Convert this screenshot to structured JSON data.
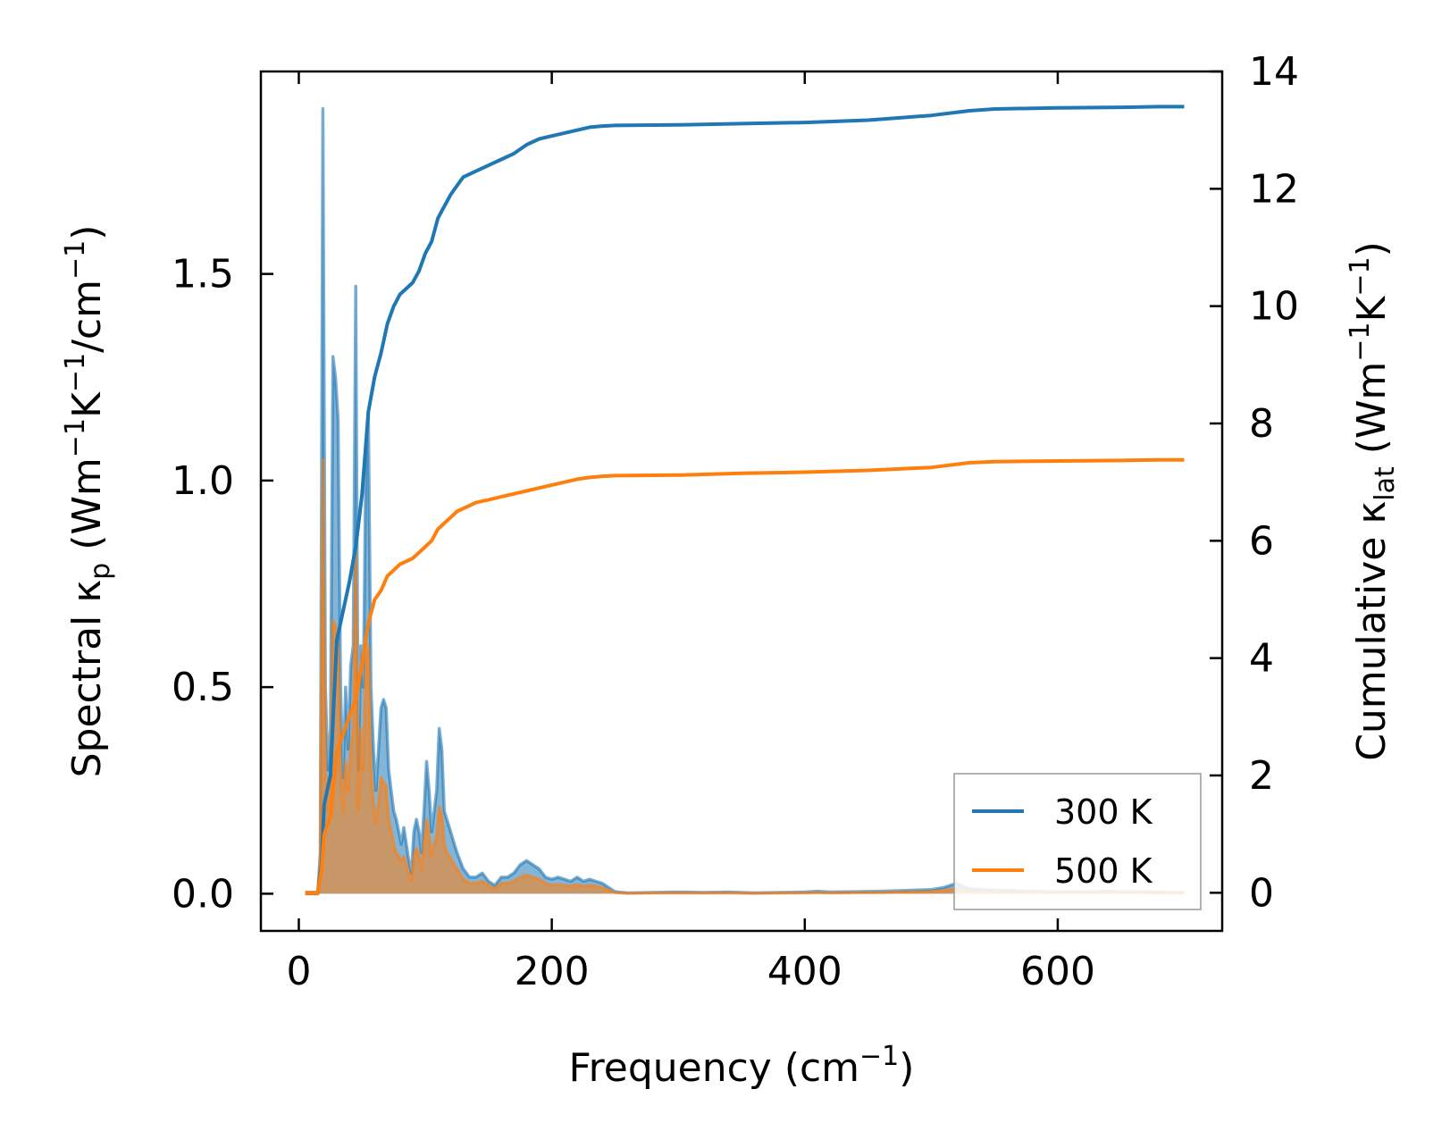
{
  "chart_data": {
    "type": "line",
    "xlabel": "Frequency (cm",
    "xlabel_sup": "−1",
    "xlabel_end": ")",
    "ylabel_left": {
      "prefix": "Spectral κ",
      "sub": "p",
      "mid1": " (Wm",
      "sup1": "−1",
      "mid2": "K",
      "sup2": "−1",
      "mid3": "/cm",
      "sup3": "−1",
      "end": ")"
    },
    "ylabel_right": {
      "prefix": "Cumulative κ",
      "sub": "lat",
      "mid1": " (Wm",
      "sup1": "−1",
      "mid2": "K",
      "sup2": "−1",
      "end": ")"
    },
    "xlim": [
      -30,
      730
    ],
    "ylim_left": [
      -0.09,
      1.99
    ],
    "ylim_right": [
      -0.65,
      14.0
    ],
    "xticks": [
      {
        "v": 0,
        "label": "0"
      },
      {
        "v": 200,
        "label": "200"
      },
      {
        "v": 400,
        "label": "400"
      },
      {
        "v": 600,
        "label": "600"
      }
    ],
    "yticks_left": [
      {
        "v": 0.0,
        "label": "0.0"
      },
      {
        "v": 0.5,
        "label": "0.5"
      },
      {
        "v": 1.0,
        "label": "1.0"
      },
      {
        "v": 1.5,
        "label": "1.5"
      }
    ],
    "yticks_right": [
      {
        "v": 0,
        "label": "0"
      },
      {
        "v": 2,
        "label": "2"
      },
      {
        "v": 4,
        "label": "4"
      },
      {
        "v": 6,
        "label": "6"
      },
      {
        "v": 8,
        "label": "8"
      },
      {
        "v": 10,
        "label": "10"
      },
      {
        "v": 12,
        "label": "12"
      },
      {
        "v": 14,
        "label": "14"
      }
    ],
    "legend_position": "lower-right",
    "colors": {
      "s300": "#1f77b4",
      "s500": "#ff7f0e"
    },
    "series": [
      {
        "name": "300 K",
        "color": "#1f77b4",
        "cumulative_x": [
          5,
          15,
          18,
          20,
          25,
          30,
          35,
          40,
          45,
          50,
          55,
          60,
          65,
          70,
          75,
          80,
          85,
          90,
          95,
          100,
          105,
          110,
          115,
          120,
          125,
          130,
          135,
          140,
          150,
          160,
          170,
          180,
          190,
          200,
          210,
          220,
          230,
          240,
          250,
          300,
          350,
          400,
          450,
          500,
          530,
          550,
          600,
          650,
          680,
          700
        ],
        "cumulative_y": [
          0,
          0,
          0.5,
          1.5,
          2.0,
          4.3,
          4.8,
          5.3,
          5.9,
          6.8,
          8.2,
          8.8,
          9.2,
          9.7,
          10.0,
          10.2,
          10.3,
          10.4,
          10.6,
          10.9,
          11.1,
          11.5,
          11.7,
          11.9,
          12.05,
          12.2,
          12.25,
          12.3,
          12.4,
          12.5,
          12.6,
          12.75,
          12.85,
          12.9,
          12.95,
          13.0,
          13.05,
          13.07,
          13.08,
          13.09,
          13.11,
          13.13,
          13.17,
          13.25,
          13.33,
          13.36,
          13.38,
          13.39,
          13.4,
          13.4
        ],
        "spectral_x": [
          5,
          15,
          17,
          19,
          21,
          23,
          25,
          27,
          29,
          31,
          33,
          35,
          37,
          39,
          41,
          43,
          45,
          47,
          49,
          51,
          53,
          55,
          57,
          59,
          61,
          63,
          65,
          67,
          69,
          71,
          73,
          75,
          77,
          79,
          81,
          83,
          85,
          87,
          89,
          91,
          93,
          95,
          97,
          99,
          101,
          103,
          105,
          107,
          109,
          111,
          113,
          115,
          117,
          119,
          121,
          125,
          130,
          135,
          140,
          145,
          150,
          155,
          160,
          165,
          170,
          175,
          180,
          185,
          190,
          195,
          200,
          205,
          210,
          215,
          220,
          225,
          230,
          235,
          240,
          245,
          250,
          260,
          280,
          300,
          320,
          340,
          360,
          380,
          400,
          410,
          420,
          440,
          460,
          480,
          500,
          510,
          515,
          520,
          525,
          530,
          540,
          560,
          580,
          600,
          620,
          640,
          660,
          680,
          700
        ],
        "spectral_y": [
          0,
          0,
          0.1,
          1.9,
          0.5,
          0.3,
          0.4,
          1.3,
          1.25,
          1.15,
          0.5,
          0.28,
          0.5,
          0.35,
          0.55,
          0.6,
          1.47,
          0.3,
          0.6,
          0.5,
          1.05,
          1.17,
          0.5,
          0.35,
          0.25,
          0.35,
          0.45,
          0.47,
          0.45,
          0.3,
          0.25,
          0.2,
          0.18,
          0.15,
          0.12,
          0.16,
          0.12,
          0.08,
          0.05,
          0.15,
          0.18,
          0.15,
          0.1,
          0.2,
          0.32,
          0.25,
          0.15,
          0.2,
          0.25,
          0.4,
          0.35,
          0.2,
          0.18,
          0.16,
          0.14,
          0.1,
          0.06,
          0.04,
          0.04,
          0.05,
          0.03,
          0.02,
          0.04,
          0.04,
          0.05,
          0.07,
          0.08,
          0.07,
          0.06,
          0.04,
          0.035,
          0.04,
          0.035,
          0.03,
          0.04,
          0.03,
          0.035,
          0.03,
          0.025,
          0.015,
          0.005,
          0.002,
          0.003,
          0.004,
          0.003,
          0.004,
          0.002,
          0.003,
          0.004,
          0.006,
          0.004,
          0.005,
          0.006,
          0.008,
          0.01,
          0.015,
          0.02,
          0.025,
          0.018,
          0.012,
          0.01,
          0.008,
          0.006,
          0.005,
          0.005,
          0.006,
          0.005,
          0.004,
          0.003
        ]
      },
      {
        "name": "500 K",
        "color": "#ff7f0e",
        "cumulative_x": [
          5,
          15,
          18,
          20,
          25,
          30,
          35,
          40,
          45,
          50,
          55,
          60,
          65,
          70,
          75,
          80,
          85,
          90,
          95,
          100,
          105,
          110,
          115,
          120,
          125,
          130,
          135,
          140,
          150,
          160,
          170,
          180,
          190,
          200,
          210,
          220,
          230,
          240,
          250,
          300,
          350,
          400,
          450,
          500,
          530,
          550,
          600,
          650,
          680,
          700
        ],
        "cumulative_y": [
          0,
          0,
          0.4,
          1.0,
          1.3,
          2.4,
          2.7,
          3.0,
          3.3,
          3.9,
          4.6,
          5.0,
          5.15,
          5.4,
          5.5,
          5.6,
          5.65,
          5.7,
          5.8,
          5.9,
          6.0,
          6.2,
          6.3,
          6.4,
          6.5,
          6.55,
          6.6,
          6.65,
          6.7,
          6.75,
          6.8,
          6.85,
          6.9,
          6.95,
          7.0,
          7.05,
          7.08,
          7.1,
          7.11,
          7.12,
          7.15,
          7.17,
          7.2,
          7.25,
          7.33,
          7.35,
          7.36,
          7.37,
          7.38,
          7.38
        ],
        "spectral_x": [
          5,
          15,
          17,
          19,
          21,
          23,
          25,
          27,
          29,
          31,
          33,
          35,
          37,
          39,
          41,
          43,
          45,
          47,
          49,
          51,
          53,
          55,
          57,
          59,
          61,
          63,
          65,
          67,
          69,
          71,
          73,
          75,
          77,
          79,
          81,
          83,
          85,
          87,
          89,
          91,
          93,
          95,
          97,
          99,
          101,
          103,
          105,
          107,
          109,
          111,
          113,
          115,
          117,
          119,
          121,
          125,
          130,
          135,
          140,
          145,
          150,
          155,
          160,
          165,
          170,
          175,
          180,
          185,
          190,
          195,
          200,
          205,
          210,
          215,
          220,
          225,
          230,
          235,
          240,
          245,
          250,
          260,
          280,
          300,
          320,
          340,
          360,
          380,
          400,
          410,
          420,
          440,
          460,
          480,
          500,
          510,
          515,
          520,
          525,
          530,
          540,
          560,
          580,
          600,
          620,
          640,
          660,
          680,
          700
        ],
        "spectral_y": [
          0,
          0,
          0.08,
          1.05,
          0.3,
          0.2,
          0.25,
          0.66,
          0.65,
          0.6,
          0.3,
          0.2,
          0.32,
          0.25,
          0.35,
          0.4,
          0.83,
          0.2,
          0.4,
          0.3,
          0.57,
          0.6,
          0.3,
          0.22,
          0.17,
          0.22,
          0.28,
          0.27,
          0.26,
          0.18,
          0.15,
          0.12,
          0.1,
          0.09,
          0.08,
          0.09,
          0.07,
          0.05,
          0.03,
          0.09,
          0.11,
          0.09,
          0.06,
          0.12,
          0.18,
          0.14,
          0.09,
          0.12,
          0.14,
          0.21,
          0.19,
          0.12,
          0.1,
          0.09,
          0.08,
          0.06,
          0.035,
          0.025,
          0.025,
          0.03,
          0.02,
          0.012,
          0.025,
          0.025,
          0.03,
          0.04,
          0.045,
          0.04,
          0.035,
          0.025,
          0.02,
          0.022,
          0.02,
          0.018,
          0.022,
          0.018,
          0.02,
          0.018,
          0.014,
          0.009,
          0.003,
          0.001,
          0.002,
          0.002,
          0.002,
          0.002,
          0.001,
          0.002,
          0.002,
          0.003,
          0.002,
          0.003,
          0.003,
          0.004,
          0.005,
          0.008,
          0.01,
          0.013,
          0.009,
          0.006,
          0.005,
          0.004,
          0.003,
          0.003,
          0.003,
          0.003,
          0.003,
          0.002,
          0.002
        ]
      }
    ]
  }
}
